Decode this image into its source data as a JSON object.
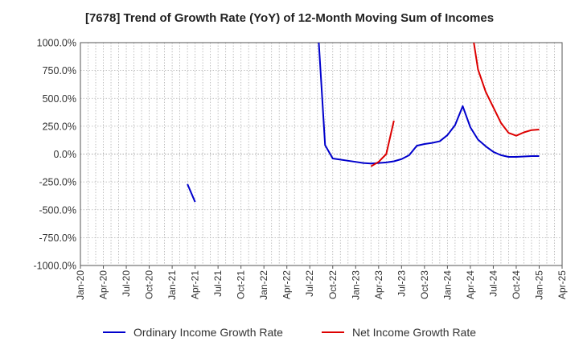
{
  "chart_data": {
    "type": "line",
    "title": "[7678]  Trend of Growth Rate (YoY) of 12-Month Moving Sum of Incomes",
    "xlabel": "",
    "ylabel": "",
    "ylim": [
      -1000,
      1000
    ],
    "y_ticks": [
      "1000.0%",
      "750.0%",
      "500.0%",
      "250.0%",
      "0.0%",
      "-250.0%",
      "-500.0%",
      "-750.0%",
      "-1000.0%"
    ],
    "y_tick_values": [
      1000,
      750,
      500,
      250,
      0,
      -250,
      -500,
      -750,
      -1000
    ],
    "x_ticks": [
      "Jan-20",
      "Apr-20",
      "Jul-20",
      "Oct-20",
      "Jan-21",
      "Apr-21",
      "Jul-21",
      "Oct-21",
      "Jan-22",
      "Apr-22",
      "Jul-22",
      "Oct-22",
      "Jan-23",
      "Apr-23",
      "Jul-23",
      "Oct-23",
      "Jan-24",
      "Apr-24",
      "Jul-24",
      "Oct-24",
      "Jan-25",
      "Apr-25"
    ],
    "x_start": "2020-01",
    "grid": true,
    "legend_position": "bottom",
    "series": [
      {
        "name": "Ordinary Income Growth Rate",
        "color": "#0000cc",
        "points": [
          [
            "2021-03",
            -270
          ],
          [
            "2021-04",
            -430
          ],
          [
            "2021-05",
            null
          ],
          [
            "2022-08",
            1200
          ],
          [
            "2022-09",
            80
          ],
          [
            "2022-10",
            -40
          ],
          [
            "2022-11",
            -50
          ],
          [
            "2022-12",
            -60
          ],
          [
            "2023-01",
            -70
          ],
          [
            "2023-02",
            -80
          ],
          [
            "2023-03",
            -85
          ],
          [
            "2023-04",
            -80
          ],
          [
            "2023-05",
            -75
          ],
          [
            "2023-06",
            -65
          ],
          [
            "2023-07",
            -45
          ],
          [
            "2023-08",
            -10
          ],
          [
            "2023-09",
            75
          ],
          [
            "2023-10",
            90
          ],
          [
            "2023-11",
            100
          ],
          [
            "2023-12",
            115
          ],
          [
            "2024-01",
            170
          ],
          [
            "2024-02",
            260
          ],
          [
            "2024-03",
            430
          ],
          [
            "2024-04",
            240
          ],
          [
            "2024-05",
            130
          ],
          [
            "2024-06",
            70
          ],
          [
            "2024-07",
            20
          ],
          [
            "2024-08",
            -10
          ],
          [
            "2024-09",
            -25
          ],
          [
            "2024-10",
            -25
          ],
          [
            "2024-11",
            -22
          ],
          [
            "2024-12",
            -18
          ],
          [
            "2025-01",
            -18
          ]
        ]
      },
      {
        "name": "Net Income Growth Rate",
        "color": "#dd0000",
        "points": [
          [
            "2023-03",
            -110
          ],
          [
            "2023-04",
            -70
          ],
          [
            "2023-05",
            0
          ],
          [
            "2023-06",
            300
          ],
          [
            "2023-07",
            null
          ],
          [
            "2024-04",
            1200
          ],
          [
            "2024-05",
            760
          ],
          [
            "2024-06",
            560
          ],
          [
            "2024-07",
            420
          ],
          [
            "2024-08",
            280
          ],
          [
            "2024-09",
            190
          ],
          [
            "2024-10",
            165
          ],
          [
            "2024-11",
            195
          ],
          [
            "2024-12",
            215
          ],
          [
            "2025-01",
            220
          ]
        ]
      }
    ]
  }
}
